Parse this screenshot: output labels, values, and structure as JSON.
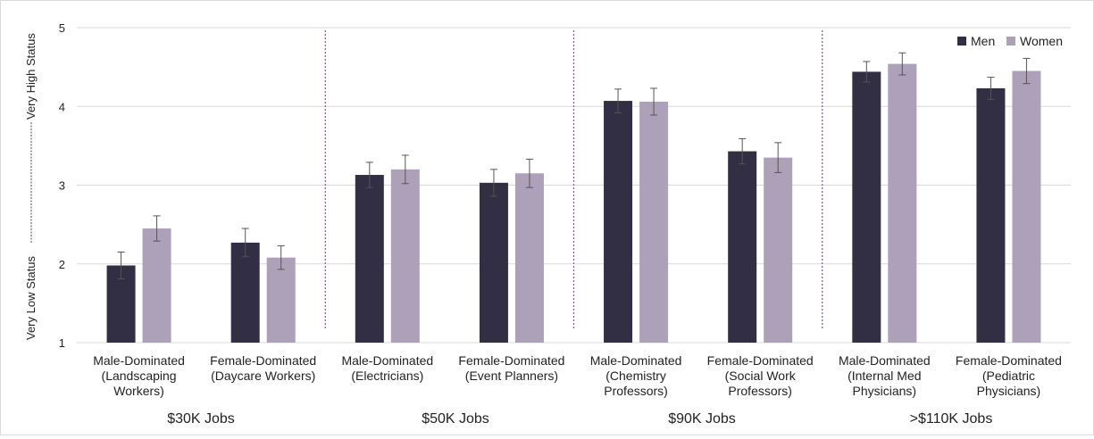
{
  "chart_data": {
    "type": "bar",
    "ylabel_low": "Very Low Status",
    "ylabel_high": "Very High Status",
    "ylim": [
      1,
      5
    ],
    "yticks": [
      "1",
      "2",
      "3",
      "4",
      "5"
    ],
    "grid": true,
    "legend_position": "top-right",
    "categories": [
      {
        "lines": [
          "Male-Dominated",
          "(Landscaping",
          "Workers)"
        ]
      },
      {
        "lines": [
          "Female-Dominated",
          "(Daycare Workers)"
        ]
      },
      {
        "lines": [
          "Male-Dominated",
          "(Electricians)"
        ]
      },
      {
        "lines": [
          "Female-Dominated",
          "(Event Planners)"
        ]
      },
      {
        "lines": [
          "Male-Dominated",
          "(Chemistry",
          "Professors)"
        ]
      },
      {
        "lines": [
          "Female-Dominated",
          "(Social Work",
          "Professors)"
        ]
      },
      {
        "lines": [
          "Male-Dominated",
          "(Internal Med",
          "Physicians)"
        ]
      },
      {
        "lines": [
          "Female-Dominated",
          "(Pediatric",
          "Physicians)"
        ]
      }
    ],
    "groups": [
      "$30K Jobs",
      "$50K Jobs",
      "$90K Jobs",
      ">$110K Jobs"
    ],
    "series": [
      {
        "name": "Men",
        "color": "#322e43",
        "values": [
          1.98,
          2.27,
          3.13,
          3.03,
          4.07,
          3.43,
          4.44,
          4.23
        ],
        "err": [
          0.17,
          0.18,
          0.16,
          0.17,
          0.15,
          0.16,
          0.13,
          0.14
        ]
      },
      {
        "name": "Women",
        "color": "#ada0b9",
        "values": [
          2.45,
          2.08,
          3.2,
          3.15,
          4.06,
          3.35,
          4.54,
          4.45
        ],
        "err": [
          0.16,
          0.15,
          0.18,
          0.18,
          0.17,
          0.19,
          0.14,
          0.16
        ]
      }
    ]
  }
}
